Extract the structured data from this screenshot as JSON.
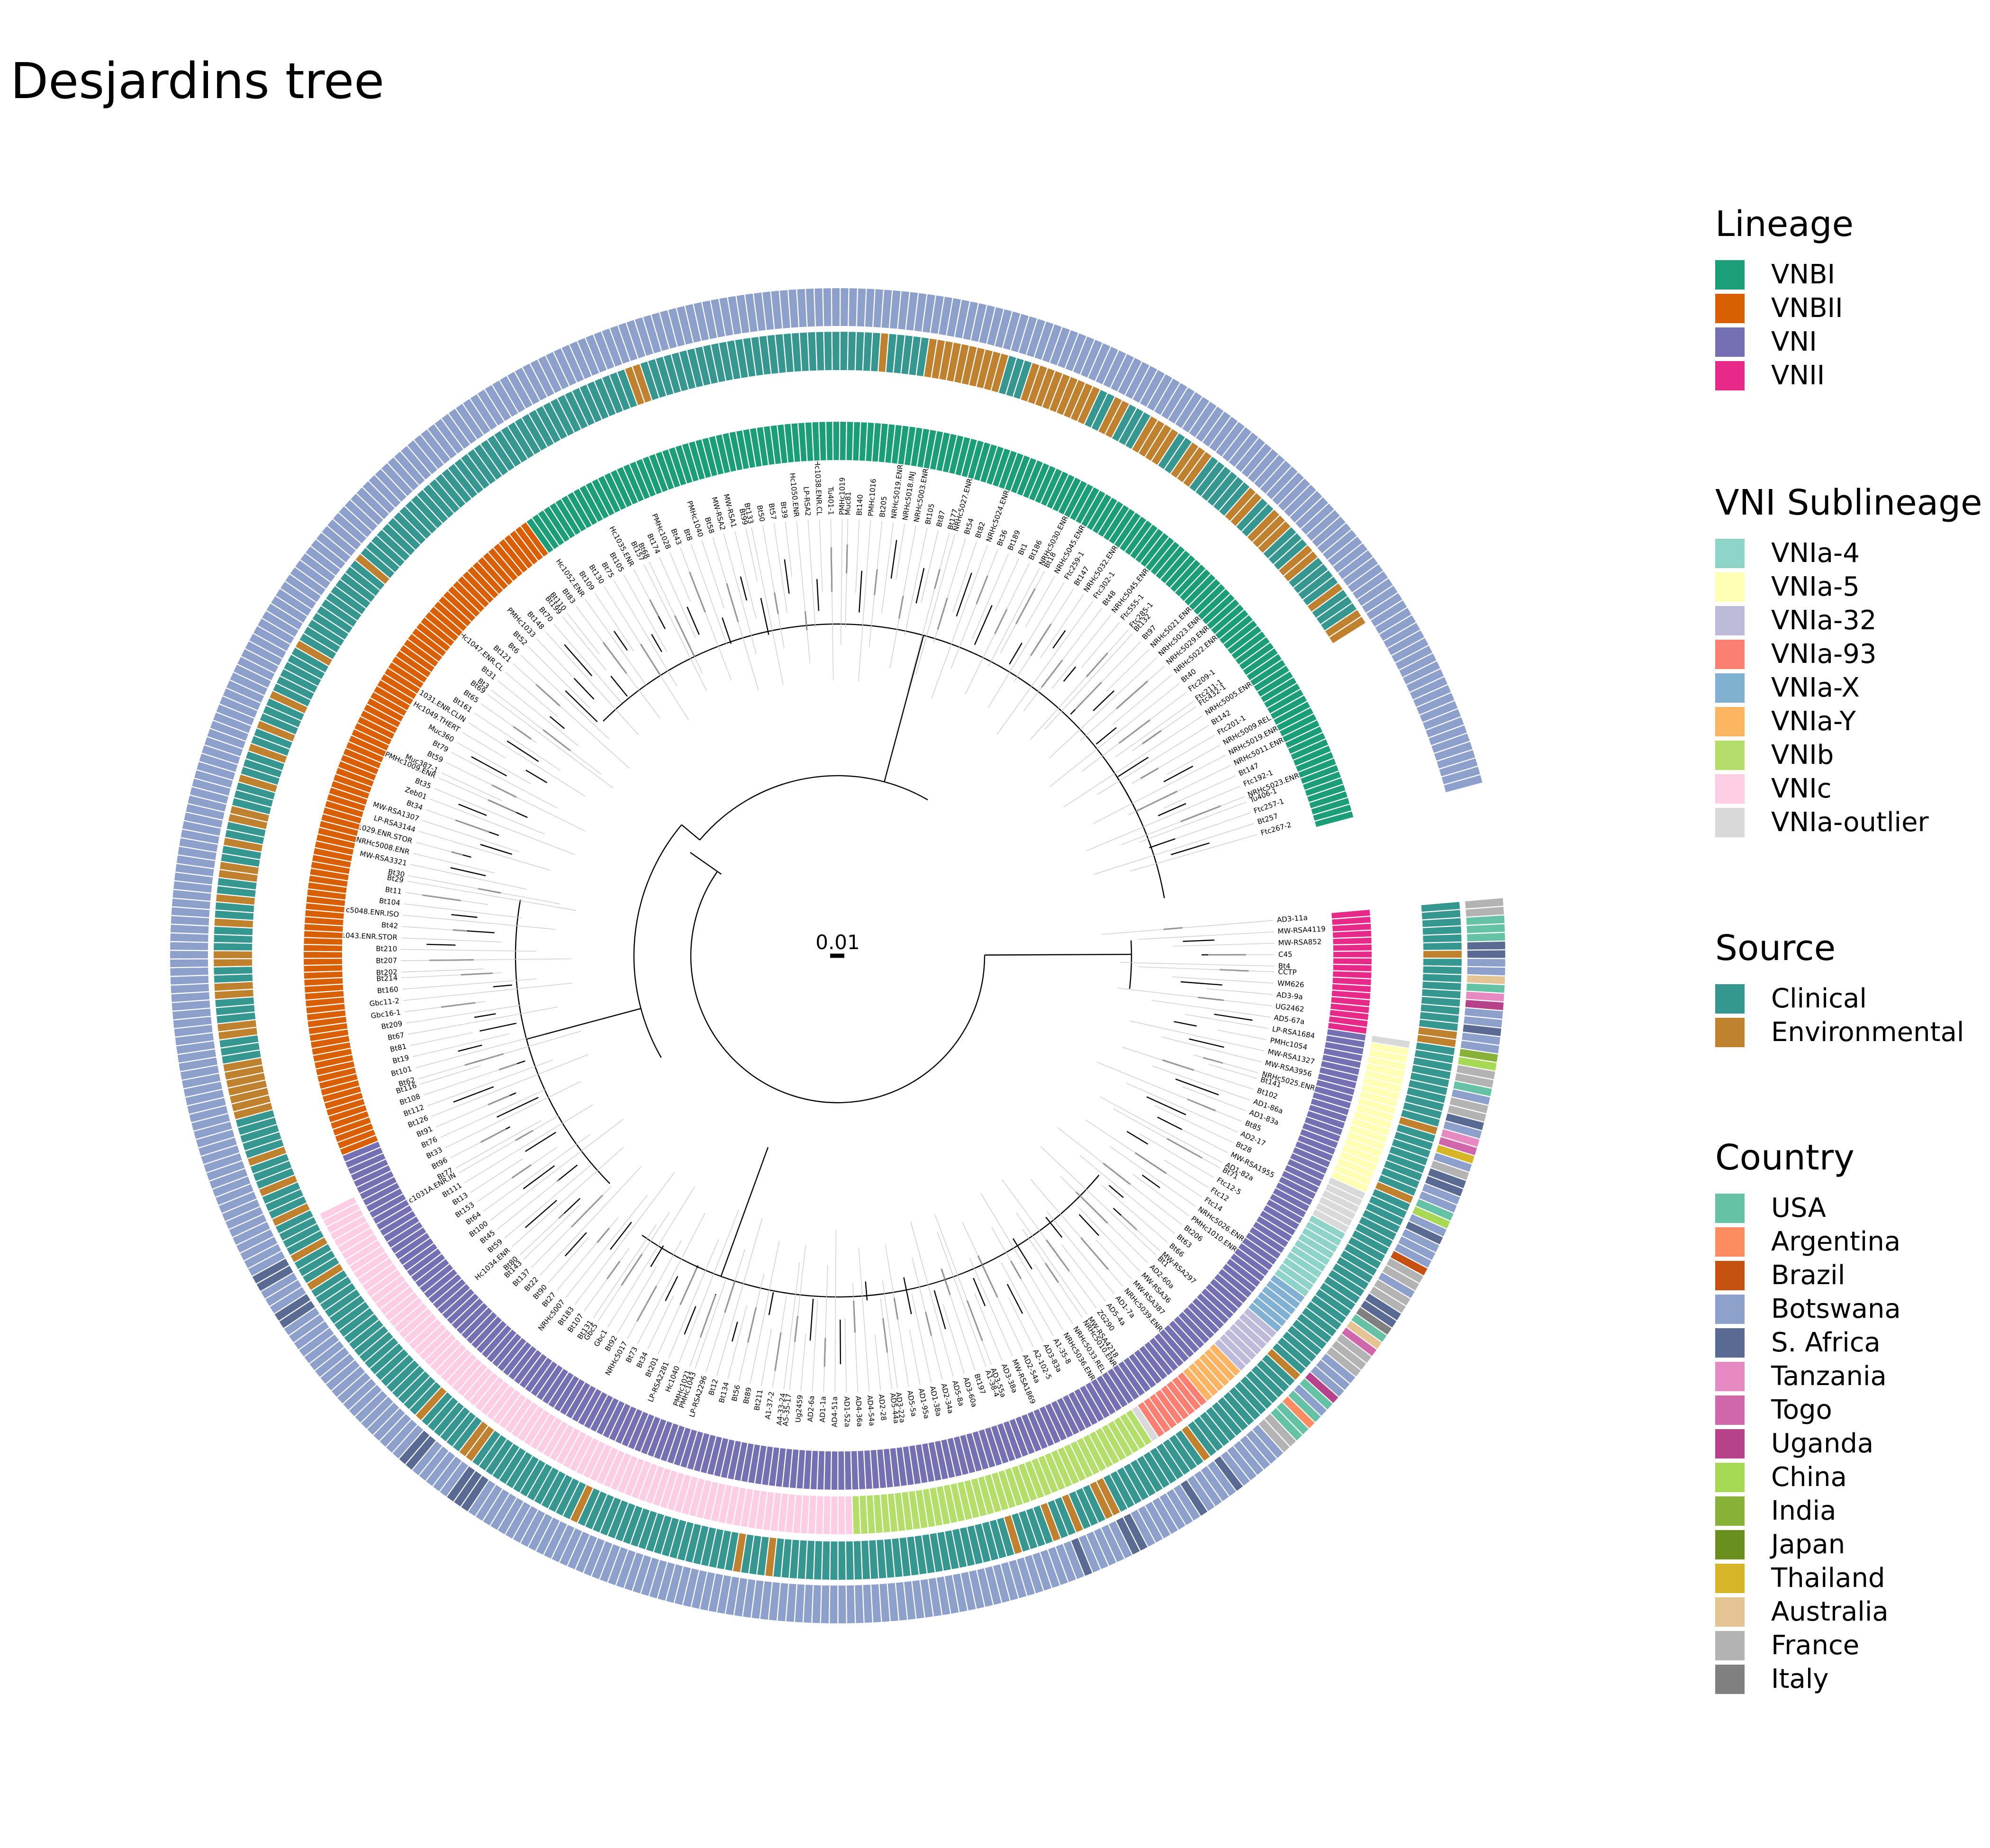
{
  "title": "Desjardins tree",
  "scale_bar": {
    "label": "0.01"
  },
  "legends": [
    {
      "title": "Lineage",
      "items": [
        {
          "label": "VNBI",
          "color": "#1b9e77"
        },
        {
          "label": "VNBII",
          "color": "#d95f02"
        },
        {
          "label": "VNI",
          "color": "#7570b3"
        },
        {
          "label": "VNII",
          "color": "#e7298a"
        }
      ]
    },
    {
      "title": "VNI Sublineage",
      "items": [
        {
          "label": "VNIa-4",
          "color": "#8dd3c7"
        },
        {
          "label": "VNIa-5",
          "color": "#ffffb3"
        },
        {
          "label": "VNIa-32",
          "color": "#bebada"
        },
        {
          "label": "VNIa-93",
          "color": "#fb8072"
        },
        {
          "label": "VNIa-X",
          "color": "#80b1d3"
        },
        {
          "label": "VNIa-Y",
          "color": "#fdb462"
        },
        {
          "label": "VNIb",
          "color": "#b3de69"
        },
        {
          "label": "VNIc",
          "color": "#fccde5"
        },
        {
          "label": "VNIa-outlier",
          "color": "#d9d9d9"
        }
      ]
    },
    {
      "title": "Source",
      "items": [
        {
          "label": "Clinical",
          "color": "#35978f"
        },
        {
          "label": "Environmental",
          "color": "#bf812d"
        }
      ]
    },
    {
      "title": "Country",
      "items": [
        {
          "label": "USA",
          "color": "#66c2a5"
        },
        {
          "label": "Argentina",
          "color": "#fc8d62"
        },
        {
          "label": "Brazil",
          "color": "#c5500f"
        },
        {
          "label": "Botswana",
          "color": "#8da0cb"
        },
        {
          "label": "S. Africa",
          "color": "#5a6b93"
        },
        {
          "label": "Tanzania",
          "color": "#e78ac3"
        },
        {
          "label": "Togo",
          "color": "#d066ab"
        },
        {
          "label": "Uganda",
          "color": "#b5428a"
        },
        {
          "label": "China",
          "color": "#a6d854"
        },
        {
          "label": "India",
          "color": "#87b23a"
        },
        {
          "label": "Japan",
          "color": "#6b8f1f"
        },
        {
          "label": "Thailand",
          "color": "#d6b627"
        },
        {
          "label": "Australia",
          "color": "#e5c494"
        },
        {
          "label": "France",
          "color": "#b3b3b3"
        },
        {
          "label": "Italy",
          "color": "#808080"
        }
      ]
    }
  ],
  "rings": {
    "lineage": [
      {
        "value": "VNII",
        "count": 18
      },
      {
        "value": "VNI",
        "count": 200
      },
      {
        "value": "VNBII",
        "count": 102
      },
      {
        "value": "VNBI",
        "count": 148
      }
    ],
    "sublineage": [
      {
        "value": "none",
        "count": 18
      },
      {
        "value": "VNIa-outlier",
        "count": 1
      },
      {
        "value": "VNIa-5",
        "count": 20
      },
      {
        "value": "VNIa-outlier",
        "count": 6
      },
      {
        "value": "VNIa-4",
        "count": 10
      },
      {
        "value": "VNIa-X",
        "count": 6
      },
      {
        "value": "VNIa-32",
        "count": 7
      },
      {
        "value": "VNIa-Y",
        "count": 6
      },
      {
        "value": "VNIa-93",
        "count": 8
      },
      {
        "value": "VNIa-outlier",
        "count": 1
      },
      {
        "value": "VNIb",
        "count": 42
      },
      {
        "value": "VNIc",
        "count": 87
      },
      {
        "value": "none",
        "count": 250
      }
    ],
    "source": [
      {
        "value": "Clinical",
        "count": 6
      },
      {
        "value": "Environmental",
        "count": 1
      },
      {
        "value": "Clinical",
        "count": 9
      },
      {
        "value": "Environmental",
        "count": 2
      },
      {
        "value": "Clinical",
        "count": 10
      },
      {
        "value": "Environmental",
        "count": 1
      },
      {
        "value": "Clinical",
        "count": 8
      },
      {
        "value": "Environmental",
        "count": 1
      },
      {
        "value": "Clinical",
        "count": 25
      },
      {
        "value": "Environmental",
        "count": 1
      },
      {
        "value": "Clinical",
        "count": 14
      },
      {
        "value": "Environmental",
        "count": 1
      },
      {
        "value": "Clinical",
        "count": 12
      },
      {
        "value": "Environmental",
        "count": 2
      },
      {
        "value": "Clinical",
        "count": 3
      },
      {
        "value": "Environmental",
        "count": 1
      },
      {
        "value": "Clinical",
        "count": 2
      },
      {
        "value": "Environmental",
        "count": 1
      },
      {
        "value": "Clinical",
        "count": 4
      },
      {
        "value": "Environmental",
        "count": 1
      },
      {
        "value": "Clinical",
        "count": 30
      },
      {
        "value": "Environmental",
        "count": 1
      },
      {
        "value": "Clinical",
        "count": 3
      },
      {
        "value": "Environmental",
        "count": 1
      },
      {
        "value": "Clinical",
        "count": 20
      },
      {
        "value": "Environmental",
        "count": 1
      },
      {
        "value": "Clinical",
        "count": 14
      },
      {
        "value": "Environmental",
        "count": 2
      },
      {
        "value": "Clinical",
        "count": 6
      },
      {
        "value": "Environmental",
        "count": 1
      },
      {
        "value": "Clinical",
        "count": 20
      },
      {
        "value": "Environmental",
        "count": 1
      },
      {
        "value": "Clinical",
        "count": 3
      },
      {
        "value": "Environmental",
        "count": 1
      },
      {
        "value": "Clinical",
        "count": 4
      },
      {
        "value": "Environmental",
        "count": 1
      },
      {
        "value": "Clinical",
        "count": 3
      },
      {
        "value": "Environmental",
        "count": 1
      },
      {
        "value": "Clinical",
        "count": 3
      },
      {
        "value": "Environmental",
        "count": 1
      },
      {
        "value": "Clinical",
        "count": 5
      },
      {
        "value": "Environmental",
        "count": 7
      },
      {
        "value": "Clinical",
        "count": 3
      },
      {
        "value": "Environmental",
        "count": 2
      },
      {
        "value": "Clinical",
        "count": 3
      },
      {
        "value": "Environmental",
        "count": 2
      },
      {
        "value": "Clinical",
        "count": 2
      },
      {
        "value": "Environmental",
        "count": 2
      },
      {
        "value": "Clinical",
        "count": 3
      },
      {
        "value": "Environmental",
        "count": 1
      },
      {
        "value": "Clinical",
        "count": 2
      },
      {
        "value": "Environmental",
        "count": 1
      },
      {
        "value": "Clinical",
        "count": 2
      },
      {
        "value": "Environmental",
        "count": 2
      },
      {
        "value": "Clinical",
        "count": 2
      },
      {
        "value": "Environmental",
        "count": 1
      },
      {
        "value": "Clinical",
        "count": 2
      },
      {
        "value": "Environmental",
        "count": 2
      },
      {
        "value": "Clinical",
        "count": 3
      },
      {
        "value": "Environmental",
        "count": 1
      },
      {
        "value": "Clinical",
        "count": 3
      },
      {
        "value": "Environmental",
        "count": 1
      },
      {
        "value": "Clinical",
        "count": 2
      },
      {
        "value": "Environmental",
        "count": 1
      },
      {
        "value": "Clinical",
        "count": 3
      },
      {
        "value": "Environmental",
        "count": 1
      },
      {
        "value": "Clinical",
        "count": 6
      },
      {
        "value": "Environmental",
        "count": 1
      },
      {
        "value": "Clinical",
        "count": 12
      },
      {
        "value": "Environmental",
        "count": 1
      },
      {
        "value": "Clinical",
        "count": 40
      },
      {
        "value": "Environmental",
        "count": 2
      },
      {
        "value": "Clinical",
        "count": 30
      },
      {
        "value": "Environmental",
        "count": 1
      },
      {
        "value": "Clinical",
        "count": 5
      },
      {
        "value": "Environmental",
        "count": 10
      },
      {
        "value": "Clinical",
        "count": 3
      },
      {
        "value": "Environmental",
        "count": 9
      },
      {
        "value": "Clinical",
        "count": 2
      },
      {
        "value": "Environmental",
        "count": 2
      },
      {
        "value": "Clinical",
        "count": 3
      },
      {
        "value": "Environmental",
        "count": 4
      },
      {
        "value": "Clinical",
        "count": 2
      },
      {
        "value": "Environmental",
        "count": 3
      },
      {
        "value": "Clinical",
        "count": 6
      },
      {
        "value": "Environmental",
        "count": 2
      },
      {
        "value": "Clinical",
        "count": 2
      },
      {
        "value": "Environmental",
        "count": 3
      },
      {
        "value": "Clinical",
        "count": 3
      },
      {
        "value": "Environmental",
        "count": 2
      },
      {
        "value": "Clinical",
        "count": 4
      },
      {
        "value": "Environmental",
        "count": 1
      },
      {
        "value": "Clinical",
        "count": 3
      },
      {
        "value": "Environmental",
        "count": 2
      }
    ],
    "country": [
      {
        "value": "France",
        "count": 2
      },
      {
        "value": "USA",
        "count": 3
      },
      {
        "value": "S. Africa",
        "count": 2
      },
      {
        "value": "Botswana",
        "count": 2
      },
      {
        "value": "Australia",
        "count": 1
      },
      {
        "value": "USA",
        "count": 1
      },
      {
        "value": "Tanzania",
        "count": 1
      },
      {
        "value": "Uganda",
        "count": 1
      },
      {
        "value": "Botswana",
        "count": 2
      },
      {
        "value": "S. Africa",
        "count": 1
      },
      {
        "value": "Botswana",
        "count": 2
      },
      {
        "value": "India",
        "count": 1
      },
      {
        "value": "China",
        "count": 1
      },
      {
        "value": "France",
        "count": 2
      },
      {
        "value": "USA",
        "count": 1
      },
      {
        "value": "Botswana",
        "count": 1
      },
      {
        "value": "France",
        "count": 2
      },
      {
        "value": "S. Africa",
        "count": 1
      },
      {
        "value": "Botswana",
        "count": 1
      },
      {
        "value": "Tanzania",
        "count": 1
      },
      {
        "value": "Togo",
        "count": 1
      },
      {
        "value": "Thailand",
        "count": 1
      },
      {
        "value": "Botswana",
        "count": 1
      },
      {
        "value": "France",
        "count": 1
      },
      {
        "value": "S. Africa",
        "count": 2
      },
      {
        "value": "Botswana",
        "count": 2
      },
      {
        "value": "USA",
        "count": 1
      },
      {
        "value": "China",
        "count": 1
      },
      {
        "value": "Botswana",
        "count": 1
      },
      {
        "value": "S. Africa",
        "count": 1
      },
      {
        "value": "Botswana",
        "count": 3
      },
      {
        "value": "Brazil",
        "count": 1
      },
      {
        "value": "France",
        "count": 2
      },
      {
        "value": "Botswana",
        "count": 1
      },
      {
        "value": "France",
        "count": 2
      },
      {
        "value": "S. Africa",
        "count": 2
      },
      {
        "value": "Italy",
        "count": 1
      },
      {
        "value": "USA",
        "count": 1
      },
      {
        "value": "Australia",
        "count": 1
      },
      {
        "value": "Togo",
        "count": 1
      },
      {
        "value": "France",
        "count": 3
      },
      {
        "value": "Botswana",
        "count": 3
      },
      {
        "value": "Uganda",
        "count": 1
      },
      {
        "value": "USA",
        "count": 1
      },
      {
        "value": "Botswana",
        "count": 1
      },
      {
        "value": "USA",
        "count": 1
      },
      {
        "value": "Argentina",
        "count": 1
      },
      {
        "value": "USA",
        "count": 2
      },
      {
        "value": "France",
        "count": 2
      },
      {
        "value": "Botswana",
        "count": 6
      },
      {
        "value": "S. Africa",
        "count": 1
      },
      {
        "value": "Botswana",
        "count": 4
      },
      {
        "value": "S. Africa",
        "count": 1
      },
      {
        "value": "Botswana",
        "count": 7
      },
      {
        "value": "S. Africa",
        "count": 2
      },
      {
        "value": "Botswana",
        "count": 5
      },
      {
        "value": "S. Africa",
        "count": 1
      },
      {
        "value": "Botswana",
        "count": 74
      },
      {
        "value": "S. Africa",
        "count": 3
      },
      {
        "value": "Botswana",
        "count": 5
      },
      {
        "value": "S. Africa",
        "count": 2
      },
      {
        "value": "Botswana",
        "count": 20
      },
      {
        "value": "S. Africa",
        "count": 2
      },
      {
        "value": "Botswana",
        "count": 3
      },
      {
        "value": "S. Africa",
        "count": 2
      },
      {
        "value": "Botswana",
        "count": 260
      }
    ]
  },
  "tip_labels": [
    "AD3-11a",
    "MW-RSA4119",
    "MW-RSA852",
    "C45",
    "Bt4",
    "CCTP",
    "WM626",
    "AD3-9a",
    "UG2462",
    "AD5-67a",
    "LP-RSA1684",
    "PMHc1054",
    "MW-RSA1327",
    "MW-RSA3956",
    "NRHc5025.ENR.CL",
    "Bt141",
    "Bt102",
    "AD1-86a",
    "AD1-83a",
    "Bt85",
    "AD2-17",
    "Bt28",
    "MW-RSA1955",
    "AD1-82a",
    "Bt71",
    "Ftc12-5",
    "Ftc12",
    "Ftc14",
    "NRHc5026.ENR.ST",
    "PMHc1010.ENR",
    "Bt206",
    "Bt63",
    "Bt66",
    "MW-RSA297",
    "Bt1",
    "AD2-60a",
    "MW-RSA36",
    "MW-RSA387",
    "NRHc5039.ENR",
    "AD1-7a",
    "AD5-4a",
    "ZG290",
    "MW-RSA4218",
    "NRHc5010.ENR",
    "NRHc5033.REL.IN",
    "NRHc5036.ENR",
    "A1-35-8",
    "AD3-83a",
    "A2-102-5",
    "AD2-54a",
    "MW-RSA1869",
    "AD3-38a",
    "AD3-55a",
    "A1-38-4",
    "Bt197",
    "AD3-60a",
    "AD5-8a",
    "AD2-34a",
    "AD1-38a",
    "AD1-95a",
    "AD5-5a",
    "AD3-22a",
    "AD5-44a",
    "AD2-28",
    "AD4-54a",
    "AD4-36a",
    "AD1-52a",
    "AD4-51a",
    "AD1-1a",
    "AD2-6a",
    "Ug2459",
    "A5-35-17",
    "A4-33-24",
    "A1-37-2",
    "Bt211",
    "Bt89",
    "Bt56",
    "Bt134",
    "Bt12",
    "LP-RSA2296",
    "PMHc1043",
    "PMHc1021",
    "Hc1040",
    "LP-RSA2281",
    "Bt201",
    "Bt34",
    "Bt73",
    "NRHc5017",
    "Bt92",
    "Gbc1",
    "Gbc5",
    "Bt131",
    "Bt107",
    "Bt183",
    "NRHc5007",
    "Bt27",
    "Bt90",
    "Bt22",
    "Bt137",
    "Bt143",
    "Bt80",
    "Hc1034.ENR",
    "Bt59",
    "Bt45",
    "Bt100",
    "Bt64",
    "Bt153",
    "Bt13",
    "Bt111",
    "Hc1031A.ENR.IN",
    "Bt77",
    "Bt96",
    "Bt33",
    "Bt76",
    "Bt91",
    "Bt126",
    "Bt112",
    "Bt108",
    "Bt116",
    "Bt62",
    "Bt101",
    "Bt19",
    "Bt81",
    "Bt67",
    "Bt209",
    "Gbc16-1",
    "Gbc11-2",
    "Bt160",
    "Bt214",
    "Bt202",
    "Bt207",
    "Bt210",
    "Hc1043.ENR.STOR",
    "Bt42",
    "NRHc5048.ENR.ISO",
    "Bt104",
    "Bt11",
    "Bt29",
    "Bt30",
    "MW-RSA3321",
    "NRHc5008.ENR",
    "Hc1029.ENR.STOR",
    "LP-RSA3144",
    "MW-RSA1307",
    "Bt34",
    "Zeb01",
    "Bt35",
    "PMHc1009.ENR",
    "Muc387-1",
    "Bt59",
    "Bt79",
    "Muc360",
    "Hc1049.THERT",
    "Hc1031.ENR.CLIN",
    "Bt161",
    "Bt65",
    "Bt69",
    "Bt3",
    "Bt31",
    "Hc1047.ENR.CL",
    "Bt121",
    "Bt6",
    "Bt52",
    "PMHc1033",
    "Bt148",
    "Bt70",
    "Bt199",
    "Bt110",
    "Bt83",
    "Hc1052.ENR",
    "Bt109",
    "Bt130",
    "Bt75",
    "Bt105",
    "Hc1035.ENR",
    "Bt157",
    "Bt68",
    "Bt174",
    "PMHc1028",
    "Bt43",
    "Bt8",
    "PMHc1040",
    "Bt58",
    "MW-RSA2",
    "MW-RSA1",
    "Bt99",
    "Bt133",
    "Bt50",
    "Bt57",
    "Bt39",
    "Hc1050.ENR",
    "LP-RSA2",
    "Hc1038.ENR.CL",
    "Tu401-1",
    "PMHc1019",
    "Muc81",
    "Bt140",
    "PMHc1016",
    "Bt205",
    "NRHc5019.ENR",
    "NRHc5018.INJ",
    "NRHc5003.ENR",
    "Bt105",
    "Bt87",
    "Bt177",
    "NRHc5027.ENR.CL",
    "Bt54",
    "Bt82",
    "NRHc5024.ENR",
    "Bt36",
    "Bt189",
    "Bt1",
    "Bt186",
    "NRHc5030.ENR.CL",
    "Bt18",
    "NRHc5045.ENR",
    "Ftc259-1",
    "Bt147",
    "NRHc5032.ENR",
    "Ftc302-1",
    "Bt48",
    "NRHc5045.ENR.CL",
    "Ftc555-1",
    "Ftc285-1",
    "Bt132",
    "Bt97",
    "NRHc5021.ENR",
    "NRHc5023.ENR",
    "NRHc5029.ENR.CL",
    "NRHc5022.ENR",
    "Bt40",
    "Ftc209-1",
    "Ftc211-1",
    "Ftc432-1",
    "NRHc5005.ENR",
    "Bt142",
    "Ftc201-1",
    "NRHc5009.REL.INT",
    "NRHc5019.ENR",
    "NRHc5011.ENR",
    "Bt147",
    "Ftc192-1",
    "NRHc5023.ENR",
    "Tu406-1",
    "Ftc257-1",
    "Bt257",
    "Ftc267-2"
  ]
}
